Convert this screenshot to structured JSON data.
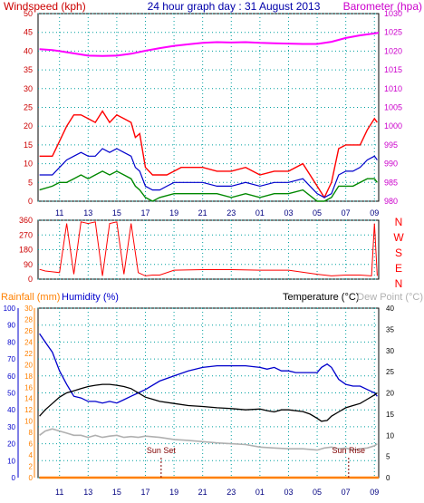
{
  "colors": {
    "background": "#ffffff",
    "grid": "#00a0a0",
    "frame": "#000000",
    "wind": "#ff0000",
    "gust": "#ff0000",
    "wind_avg": "#0000cc",
    "wind_min": "#008800",
    "barometer": "#ff00ff",
    "direction": "#ff0000",
    "rain": "#ff8000",
    "humidity": "#0000cc",
    "temperature": "#000000",
    "dewpoint": "#b0b0b0",
    "sun_text": "#800000"
  },
  "chart_data": [
    {
      "id": "wind",
      "type": "line",
      "title": "24 hour graph day : 31 August 2013",
      "ylabel": "Windspeed (kph)",
      "y2label": "Barometer (hpa)",
      "ylim": [
        0,
        50
      ],
      "y_ticks": [
        "0",
        "5",
        "10",
        "15",
        "20",
        "25",
        "30",
        "35",
        "40",
        "45",
        "50"
      ],
      "y2lim": [
        980,
        1030
      ],
      "y2_ticks": [
        "980",
        "985",
        "990",
        "995",
        "1000",
        "1005",
        "1010",
        "1015",
        "1020",
        "1025",
        "1030"
      ],
      "xlim": [
        9.5,
        33.3
      ],
      "x_ticks": [
        "11",
        "13",
        "15",
        "17",
        "19",
        "21",
        "23",
        "01",
        "03",
        "05",
        "07",
        "09"
      ],
      "x_tick_positions": [
        11,
        13,
        15,
        17,
        19,
        21,
        23,
        25,
        27,
        29,
        31,
        33
      ],
      "grid": true,
      "series": [
        {
          "name": "Gust",
          "axis": "y",
          "x": [
            9.6,
            10.5,
            11,
            11.5,
            12,
            12.5,
            13,
            13.5,
            14,
            14.5,
            15,
            15.5,
            16,
            16.3,
            16.6,
            17,
            17.5,
            18,
            18.5,
            19,
            19.5,
            20,
            21,
            22,
            23,
            24,
            25,
            26,
            27,
            28,
            29,
            29.5,
            30,
            30.5,
            31,
            31.5,
            32,
            32.5,
            33,
            33.2
          ],
          "y": [
            12,
            12,
            16,
            20,
            23,
            23,
            22,
            21,
            24,
            21,
            23,
            22,
            21,
            17,
            18,
            9,
            7,
            7,
            7,
            8,
            9,
            9,
            9,
            8,
            8,
            9,
            7,
            8,
            8,
            10,
            4,
            1,
            5,
            14,
            15,
            15,
            15,
            19,
            22,
            21
          ]
        },
        {
          "name": "Wind",
          "axis": "y",
          "x": [
            9.6,
            10.5,
            11,
            11.5,
            12,
            12.5,
            13,
            13.5,
            14,
            14.5,
            15,
            15.5,
            16,
            16.3,
            16.6,
            17,
            17.5,
            18,
            18.5,
            19,
            19.5,
            20,
            21,
            22,
            23,
            24,
            25,
            26,
            27,
            28,
            29,
            29.5,
            30,
            30.5,
            31,
            31.5,
            32,
            32.5,
            33,
            33.2
          ],
          "y": [
            7,
            7,
            9,
            11,
            12,
            13,
            12,
            12,
            14,
            13,
            14,
            13,
            12,
            9,
            8,
            4,
            3,
            3,
            4,
            5,
            5,
            5,
            5,
            4,
            4,
            5,
            4,
            5,
            5,
            6,
            2,
            1,
            2,
            7,
            8,
            8,
            9,
            11,
            12,
            11
          ]
        },
        {
          "name": "Wind Min",
          "axis": "y",
          "x": [
            9.6,
            10.5,
            11,
            11.5,
            12,
            12.5,
            13,
            13.5,
            14,
            14.5,
            15,
            15.5,
            16,
            16.3,
            16.6,
            17,
            17.5,
            18,
            19,
            20,
            21,
            22,
            23,
            24,
            25,
            26,
            27,
            28,
            29,
            29.5,
            30,
            30.5,
            31,
            31.5,
            32,
            32.5,
            33,
            33.2
          ],
          "y": [
            3,
            4,
            5,
            5,
            6,
            7,
            6,
            7,
            8,
            7,
            8,
            7,
            6,
            4,
            3,
            1,
            0,
            1,
            2,
            2,
            2,
            2,
            1,
            2,
            1,
            2,
            2,
            3,
            0,
            0,
            1,
            4,
            4,
            4,
            5,
            6,
            6,
            5
          ]
        },
        {
          "name": "Barometer",
          "axis": "y2",
          "x": [
            9.6,
            10.5,
            11,
            12,
            13,
            14,
            15,
            16,
            17,
            18,
            19,
            20,
            21,
            22,
            23,
            24,
            25,
            26,
            27,
            28,
            29,
            30,
            31,
            32,
            33,
            33.3
          ],
          "y": [
            1020.5,
            1020.3,
            1020,
            1019.4,
            1018.8,
            1018.7,
            1018.8,
            1019.3,
            1020.1,
            1020.8,
            1021.4,
            1021.8,
            1022.2,
            1022.4,
            1022.3,
            1022.4,
            1022.2,
            1022.1,
            1022,
            1021.9,
            1021.9,
            1022.5,
            1023.5,
            1024.2,
            1024.7,
            1024.9
          ]
        }
      ]
    },
    {
      "id": "direction",
      "type": "line",
      "ylim": [
        0,
        360
      ],
      "y_ticks": [
        "0",
        "90",
        "180",
        "270",
        "360"
      ],
      "y2_ticks": [
        "N",
        "W",
        "S",
        "E",
        "N"
      ],
      "xlim": [
        9.5,
        33.3
      ],
      "grid": true,
      "series": [
        {
          "name": "Direction",
          "x": [
            9.6,
            10,
            10.5,
            11,
            11.5,
            12,
            12.5,
            13,
            13.5,
            14,
            14.5,
            15,
            15.5,
            16,
            16.5,
            17,
            17.5,
            18,
            19,
            21,
            23,
            25,
            27,
            29,
            30,
            31,
            32,
            32.8,
            33,
            33.2
          ],
          "y": [
            60,
            50,
            45,
            40,
            340,
            30,
            350,
            340,
            350,
            20,
            340,
            350,
            30,
            340,
            40,
            20,
            25,
            25,
            55,
            58,
            58,
            55,
            55,
            30,
            20,
            25,
            25,
            20,
            340,
            20
          ]
        }
      ]
    },
    {
      "id": "temperature",
      "type": "line",
      "ylabel": "Rainfall (mm)",
      "ylabel2": "Humidity (%)",
      "ylabel3": "Temperature (°C)",
      "ylabel4": "Dew Point (°C)",
      "rain_lim": [
        0,
        30
      ],
      "rain_ticks": [
        "0",
        "2",
        "4",
        "6",
        "8",
        "10",
        "12",
        "14",
        "16",
        "18",
        "20",
        "22",
        "24",
        "26",
        "28",
        "30"
      ],
      "hum_lim": [
        0,
        100
      ],
      "hum_ticks": [
        "0",
        "10",
        "20",
        "30",
        "40",
        "50",
        "60",
        "70",
        "80",
        "90",
        "100"
      ],
      "temp_lim": [
        0,
        40
      ],
      "temp_ticks": [
        "0",
        "5",
        "10",
        "15",
        "20",
        "25",
        "30",
        "35",
        "40"
      ],
      "xlim": [
        9.5,
        33.3
      ],
      "x_ticks": [
        "11",
        "13",
        "15",
        "17",
        "19",
        "21",
        "23",
        "01",
        "03",
        "05",
        "07",
        "09"
      ],
      "x_tick_positions": [
        11,
        13,
        15,
        17,
        19,
        21,
        23,
        25,
        27,
        29,
        31,
        33
      ],
      "grid": true,
      "annotations": [
        {
          "text": "Sun Set",
          "x": 18.1
        },
        {
          "text": "Sun Rise",
          "x": 31.2
        }
      ],
      "series": [
        {
          "name": "Rainfall",
          "axis": "rain",
          "x": [
            9.6,
            33.3
          ],
          "y": [
            0,
            0
          ]
        },
        {
          "name": "Humidity",
          "axis": "hum",
          "x": [
            9.6,
            10,
            10.5,
            11,
            11.5,
            12,
            12.5,
            13,
            13.5,
            14,
            14.5,
            15,
            15.5,
            16,
            16.5,
            17,
            18,
            19,
            20,
            21,
            22,
            23,
            24,
            25,
            25.5,
            26,
            26.5,
            27,
            27.5,
            28,
            28.5,
            29,
            29.3,
            29.7,
            30,
            30.5,
            31,
            31.5,
            32,
            32.5,
            33,
            33.2
          ],
          "y": [
            85,
            80,
            74,
            63,
            55,
            48,
            47,
            45,
            45,
            44,
            45,
            44,
            46,
            48,
            50,
            52,
            57,
            60,
            63,
            65,
            66,
            66,
            66,
            65,
            64,
            65,
            63,
            63,
            62,
            62,
            62,
            62,
            65,
            67,
            65,
            58,
            55,
            54,
            54,
            52,
            50,
            48
          ]
        },
        {
          "name": "Temperature",
          "axis": "temp",
          "x": [
            9.6,
            10,
            10.5,
            11,
            11.5,
            12,
            12.5,
            13,
            13.5,
            14,
            14.5,
            15,
            15.5,
            16,
            16.5,
            17,
            17.5,
            18,
            19,
            20,
            21,
            22,
            23,
            24,
            25,
            25.5,
            26,
            26.5,
            27,
            28,
            28.5,
            29,
            29.3,
            29.7,
            30,
            30.5,
            31,
            31.5,
            32,
            32.5,
            33,
            33.2
          ],
          "y": [
            14.5,
            16,
            17.5,
            19,
            20,
            20.5,
            21,
            21.5,
            21.8,
            22,
            22,
            21.8,
            21.5,
            21,
            20,
            19,
            18.5,
            18,
            17.5,
            17,
            16.8,
            16.5,
            16.3,
            16,
            16.2,
            15.8,
            15.5,
            16,
            16,
            15.6,
            15,
            14,
            13.3,
            13.5,
            14.5,
            15.5,
            16.5,
            17,
            17.5,
            18.5,
            19.5,
            20
          ]
        },
        {
          "name": "Dew Point",
          "axis": "temp",
          "x": [
            9.6,
            10,
            10.5,
            11,
            11.5,
            12,
            12.5,
            13,
            13.5,
            14,
            14.5,
            15,
            15.5,
            16,
            16.5,
            17,
            18,
            19,
            20,
            21,
            22,
            23,
            24,
            25,
            26,
            27,
            28,
            29,
            29.5,
            30,
            30.5,
            31,
            31.5,
            32,
            32.5,
            33,
            33.2
          ],
          "y": [
            10,
            11,
            11.5,
            11,
            10.5,
            10,
            10,
            9.5,
            10,
            9.5,
            9.8,
            10,
            9.5,
            9.7,
            9.5,
            9.8,
            9.5,
            9,
            8.8,
            8.5,
            8.2,
            8,
            7.8,
            7.2,
            7,
            6.8,
            6.8,
            6.5,
            7,
            7.2,
            6.8,
            7,
            6.5,
            6.8,
            7,
            7.5,
            8
          ]
        }
      ]
    }
  ]
}
